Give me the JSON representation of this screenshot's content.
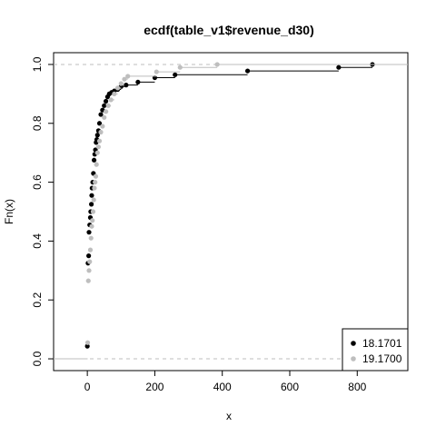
{
  "chart_data": {
    "type": "scatter",
    "title": "ecdf(table_v1$revenue_d30)",
    "xlabel": "x",
    "ylabel": "Fn(x)",
    "xlim": [
      -100,
      950
    ],
    "ylim": [
      -0.04,
      1.04
    ],
    "x_ticks": [
      0,
      200,
      400,
      600,
      800
    ],
    "y_ticks": [
      0.0,
      0.2,
      0.4,
      0.6,
      0.8,
      1.0
    ],
    "x_tick_labels": [
      "0",
      "200",
      "400",
      "600",
      "800"
    ],
    "y_tick_labels": [
      "0.0",
      "0.2",
      "0.4",
      "0.6",
      "0.8",
      "1.0"
    ],
    "reference_lines": [
      0,
      1
    ],
    "grid": false,
    "legend_position": "bottom-right",
    "series": [
      {
        "name": "18.1701",
        "color": "#000000",
        "x": [
          0,
          2,
          4,
          5,
          7,
          9,
          10,
          12,
          13,
          14,
          16,
          18,
          20,
          22,
          24,
          26,
          28,
          30,
          33,
          36,
          40,
          45,
          50,
          55,
          60,
          65,
          72,
          80,
          90,
          100,
          115,
          150,
          200,
          260,
          475,
          745,
          845
        ],
        "y": [
          0.043,
          0.325,
          0.35,
          0.43,
          0.455,
          0.48,
          0.5,
          0.525,
          0.555,
          0.58,
          0.6,
          0.63,
          0.675,
          0.695,
          0.71,
          0.735,
          0.745,
          0.76,
          0.775,
          0.8,
          0.83,
          0.845,
          0.86,
          0.875,
          0.89,
          0.9,
          0.905,
          0.91,
          0.915,
          0.925,
          0.93,
          0.94,
          0.955,
          0.965,
          0.978,
          0.99,
          1.0
        ]
      },
      {
        "name": "19.1700",
        "color": "#bebebe",
        "x": [
          1,
          3,
          5,
          7,
          9,
          11,
          13,
          15,
          17,
          19,
          21,
          23,
          25,
          27,
          30,
          33,
          36,
          40,
          45,
          50,
          55,
          62,
          70,
          80,
          90,
          100,
          110,
          120,
          205,
          275,
          385
        ],
        "y": [
          0.055,
          0.265,
          0.3,
          0.33,
          0.37,
          0.41,
          0.45,
          0.47,
          0.5,
          0.54,
          0.58,
          0.6,
          0.62,
          0.66,
          0.7,
          0.72,
          0.74,
          0.77,
          0.79,
          0.82,
          0.84,
          0.86,
          0.88,
          0.9,
          0.92,
          0.935,
          0.95,
          0.96,
          0.975,
          0.99,
          1.0
        ]
      }
    ]
  }
}
